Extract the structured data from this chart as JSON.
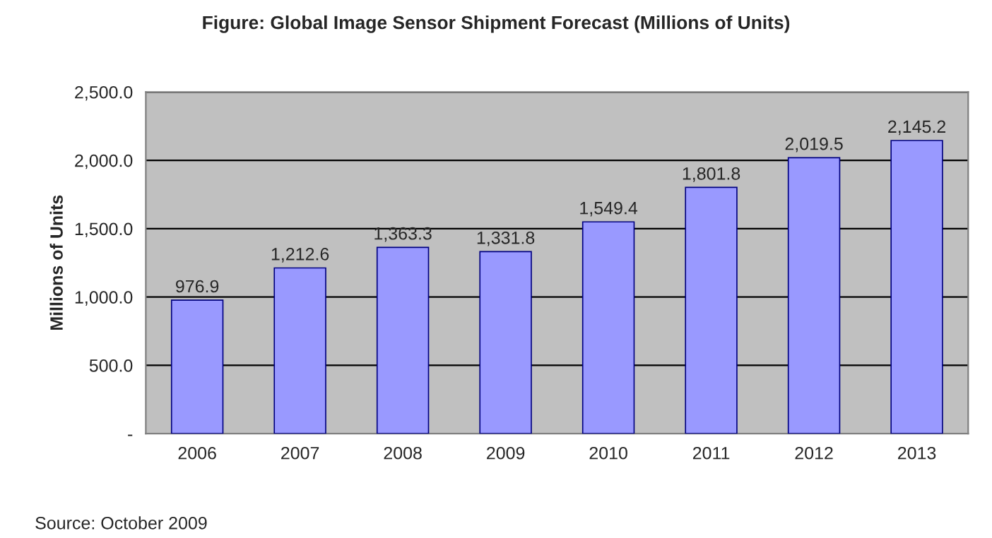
{
  "chart_data": {
    "type": "bar",
    "title": "Figure: Global Image Sensor Shipment Forecast (Millions of Units)",
    "ylabel": "Millions of Units",
    "categories": [
      "2006",
      "2007",
      "2008",
      "2009",
      "2010",
      "2011",
      "2012",
      "2013"
    ],
    "values": [
      976.9,
      1212.6,
      1363.3,
      1331.8,
      1549.4,
      1801.8,
      2019.5,
      2145.2
    ],
    "value_labels": [
      "976.9",
      "1,212.6",
      "1,363.3",
      "1,331.8",
      "1,549.4",
      "1,801.8",
      "2,019.5",
      "2,145.2"
    ],
    "color": "#9999ff",
    "ylim": [
      0,
      2500
    ],
    "yticks": [
      {
        "value": 0,
        "label": "-"
      },
      {
        "value": 500,
        "label": "500.0"
      },
      {
        "value": 1000,
        "label": "1,000.0"
      },
      {
        "value": 1500,
        "label": "1,500.0"
      },
      {
        "value": 2000,
        "label": "2,000.0"
      },
      {
        "value": 2500,
        "label": "2,500.0"
      }
    ],
    "grid": "y",
    "legend": false,
    "annotations": [
      "Source: October 2009"
    ]
  }
}
